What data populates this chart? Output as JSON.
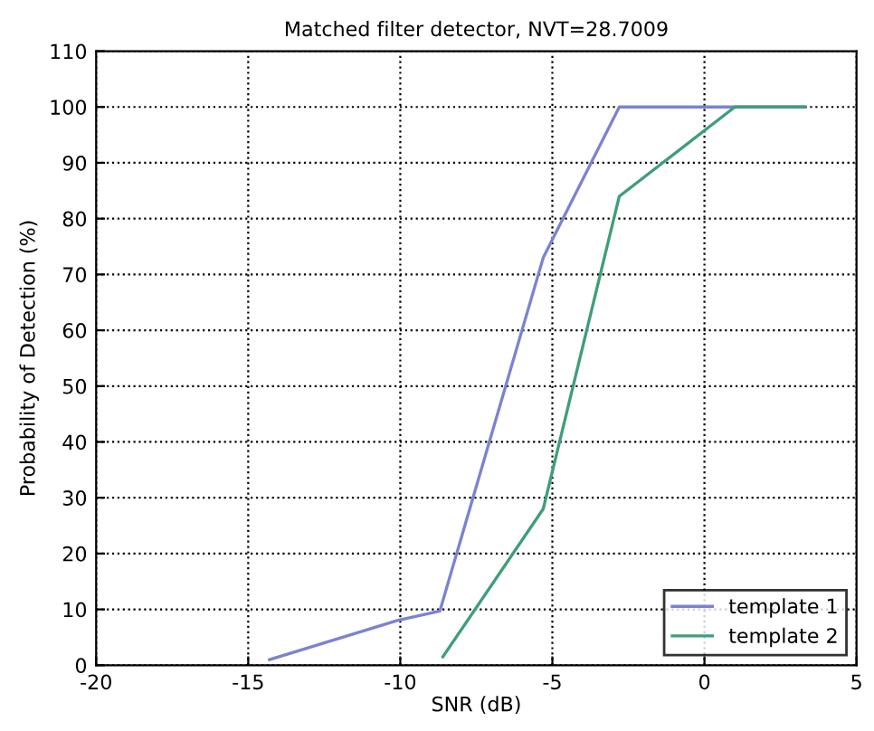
{
  "chart_data": {
    "type": "line",
    "title": "Matched filter detector, NVT=28.7009",
    "xlabel": "SNR (dB)",
    "ylabel": "Probability of Detection (%)",
    "xlim": [
      -20,
      5
    ],
    "xticks": [
      -20,
      -15,
      -10,
      -5,
      0,
      5
    ],
    "ylim": [
      0,
      110
    ],
    "yticks": [
      0,
      10,
      20,
      30,
      40,
      50,
      60,
      70,
      80,
      90,
      100,
      110
    ],
    "grid": true,
    "legend": "bottom right",
    "line_style": "solid",
    "series": [
      {
        "name": "template 1",
        "color": "#7b83d0",
        "x": [
          -14.3,
          -10.1,
          -8.7,
          -5.3,
          -2.8,
          3.3
        ],
        "values": [
          1,
          8,
          9.7,
          73,
          100,
          100
        ]
      },
      {
        "name": "template 2",
        "color": "#3f9e78",
        "x": [
          -8.6,
          -5.3,
          -2.8,
          1.0,
          3.3
        ],
        "values": [
          1.5,
          28,
          84,
          100,
          100
        ]
      }
    ]
  }
}
